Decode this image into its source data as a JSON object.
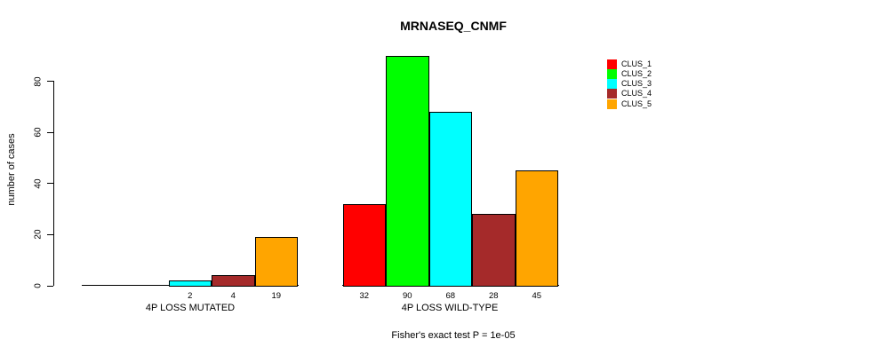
{
  "chart_data": {
    "type": "bar",
    "title": "MRNASEQ_CNMF",
    "ylabel": "number of cases",
    "xlabel": "",
    "yticks": [
      0,
      20,
      40,
      60,
      80
    ],
    "ylim": [
      0,
      90
    ],
    "grid": false,
    "legend_position": "top-right",
    "categories": [
      "4P LOSS MUTATED",
      "4P LOSS WILD-TYPE"
    ],
    "series": [
      {
        "name": "CLUS_1",
        "color": "#ff0000",
        "values": [
          0,
          32
        ]
      },
      {
        "name": "CLUS_2",
        "color": "#00ff00",
        "values": [
          0,
          90
        ]
      },
      {
        "name": "CLUS_3",
        "color": "#00ffff",
        "values": [
          2,
          68
        ]
      },
      {
        "name": "CLUS_4",
        "color": "#a52a2a",
        "values": [
          4,
          28
        ]
      },
      {
        "name": "CLUS_5",
        "color": "#ffa500",
        "values": [
          19,
          45
        ]
      }
    ],
    "bar_value_labels": "values printed under each bar; zero-height bars unlabeled",
    "annotation": "Fisher's exact test P = 1e-05"
  }
}
